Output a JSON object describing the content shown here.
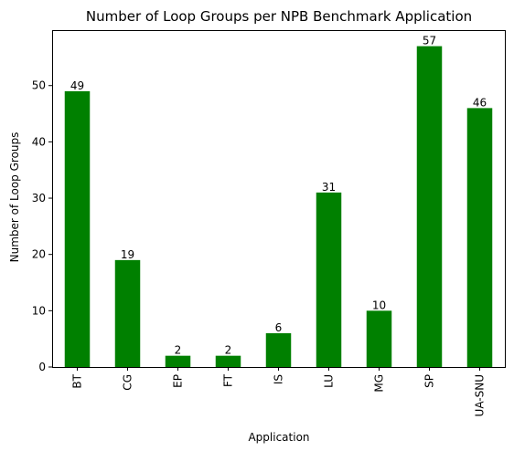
{
  "chart_data": {
    "type": "bar",
    "title": "Number of Loop Groups per NPB Benchmark Application",
    "xlabel": "Application",
    "ylabel": "Number of Loop Groups",
    "categories": [
      "BT",
      "CG",
      "EP",
      "FT",
      "IS",
      "LU",
      "MG",
      "SP",
      "UA-SNU"
    ],
    "values": [
      49,
      19,
      2,
      2,
      6,
      31,
      10,
      57,
      46
    ],
    "ylim": [
      0,
      59.85
    ],
    "yticks": [
      0,
      10,
      20,
      30,
      40,
      50
    ],
    "bar_color": "#008000",
    "grid": false,
    "x_tick_rotation": "vertical"
  }
}
